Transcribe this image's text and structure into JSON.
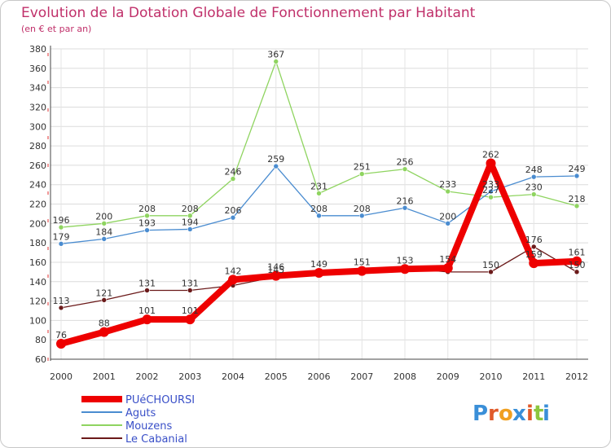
{
  "chart_data": {
    "type": "line",
    "title": "Evolution de la Dotation Globale de Fonctionnement par Habitant",
    "subtitle": "(en € et par an)",
    "xlabel": "",
    "ylabel": "",
    "ylim": [
      60,
      380
    ],
    "yticks": [
      60,
      80,
      100,
      120,
      140,
      160,
      180,
      200,
      220,
      240,
      260,
      280,
      300,
      320,
      340,
      360,
      380
    ],
    "categories": [
      "2000",
      "2001",
      "2002",
      "2003",
      "2004",
      "2005",
      "2006",
      "2007",
      "2008",
      "2009",
      "2010",
      "2011",
      "2012"
    ],
    "series": [
      {
        "name": "Le Cabanial",
        "color": "#6b1a1a",
        "values": [
          113,
          121,
          131,
          131,
          136,
          145,
          150,
          152,
          154,
          150,
          150,
          176,
          150
        ],
        "labels": [
          "113",
          "121",
          "131",
          "131",
          "",
          "145",
          "",
          "",
          "",
          "",
          "150",
          "176",
          "150"
        ]
      },
      {
        "name": "Mouzens",
        "color": "#8fd460",
        "values": [
          196,
          200,
          208,
          208,
          246,
          367,
          231,
          251,
          256,
          233,
          227,
          230,
          218
        ],
        "labels": [
          "196",
          "200",
          "208",
          "208",
          "246",
          "367",
          "231",
          "251",
          "256",
          "233",
          "227",
          "230",
          "218"
        ]
      },
      {
        "name": "Aguts",
        "color": "#4a8cd0",
        "values": [
          179,
          184,
          193,
          194,
          206,
          259,
          208,
          208,
          216,
          200,
          233,
          248,
          249
        ],
        "labels": [
          "179",
          "184",
          "193",
          "194",
          "206",
          "259",
          "208",
          "208",
          "216",
          "200",
          "233",
          "248",
          "249"
        ]
      },
      {
        "name": "PUéCHOURSI",
        "color": "#ee0000",
        "values": [
          76,
          88,
          101,
          101,
          142,
          146,
          149,
          151,
          153,
          154,
          262,
          159,
          161
        ],
        "labels": [
          "76",
          "88",
          "101",
          "101",
          "142",
          "146",
          "149",
          "151",
          "153",
          "154",
          "262",
          "159",
          "161"
        ]
      }
    ],
    "legend": [
      "PUéCHOURSI",
      "Aguts",
      "Mouzens",
      "Le Cabanial"
    ],
    "legend_position": "bottom-left"
  },
  "logo": {
    "text": "Proxiti",
    "letters": [
      "P",
      "r",
      "o",
      "x",
      "i",
      "t",
      "i"
    ],
    "colors": [
      "#3a8fd8",
      "#e05a2a",
      "#f0a020",
      "#3a8fd8",
      "#e05a2a",
      "#8cc63f",
      "#3a8fd8"
    ]
  }
}
